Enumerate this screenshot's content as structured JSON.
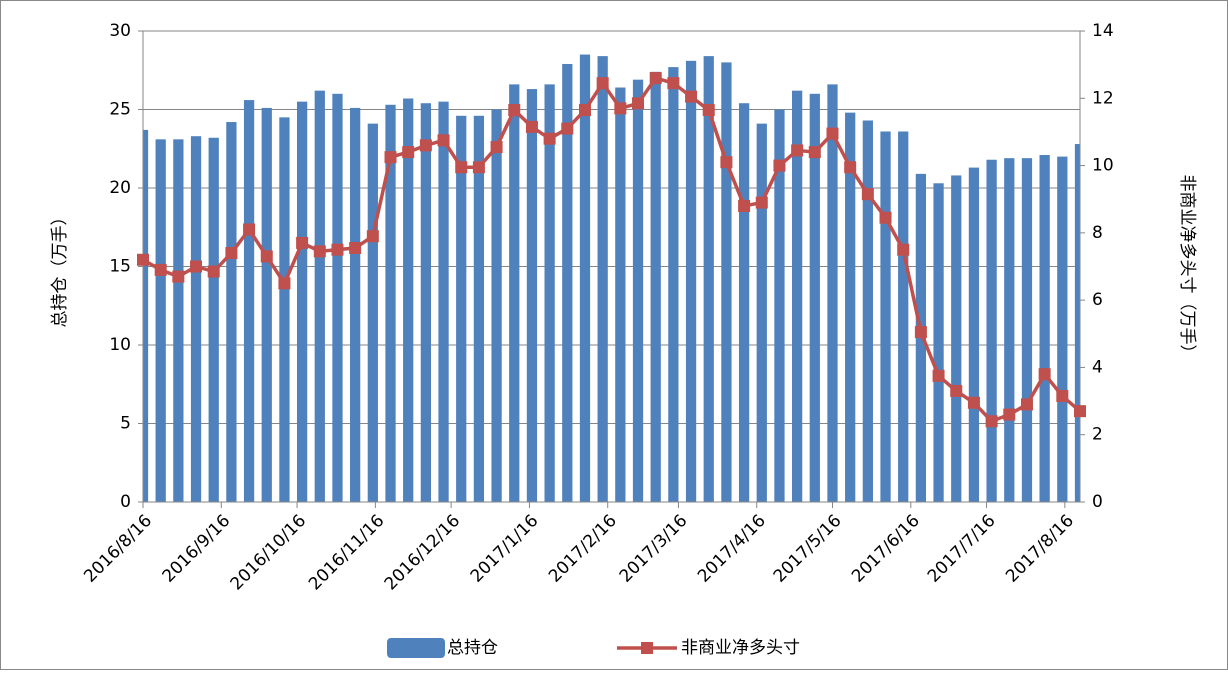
{
  "chart_data": {
    "type": "bar-line",
    "x": [
      "2016/8/16",
      "2016/8/23",
      "2016/8/30",
      "2016/9/6",
      "2016/9/13",
      "2016/9/20",
      "2016/9/27",
      "2016/10/4",
      "2016/10/11",
      "2016/10/18",
      "2016/10/25",
      "2016/11/1",
      "2016/11/8",
      "2016/11/15",
      "2016/11/22",
      "2016/11/29",
      "2016/12/6",
      "2016/12/13",
      "2016/12/20",
      "2016/12/27",
      "2017/1/3",
      "2017/1/10",
      "2017/1/17",
      "2017/1/24",
      "2017/1/31",
      "2017/2/7",
      "2017/2/14",
      "2017/2/21",
      "2017/2/28",
      "2017/3/7",
      "2017/3/14",
      "2017/3/21",
      "2017/3/28",
      "2017/4/4",
      "2017/4/11",
      "2017/4/18",
      "2017/4/25",
      "2017/5/2",
      "2017/5/9",
      "2017/5/16",
      "2017/5/23",
      "2017/5/30",
      "2017/6/6",
      "2017/6/13",
      "2017/6/20",
      "2017/6/27",
      "2017/7/4",
      "2017/7/11",
      "2017/7/18",
      "2017/7/25",
      "2017/8/1",
      "2017/8/8",
      "2017/8/15",
      "2017/8/22"
    ],
    "xticks": [
      "2016/8/16",
      "2016/9/16",
      "2016/10/16",
      "2016/11/16",
      "2016/12/16",
      "2017/1/16",
      "2017/2/16",
      "2017/3/16",
      "2017/4/16",
      "2017/5/16",
      "2017/6/16",
      "2017/7/16",
      "2017/8/16"
    ],
    "series": [
      {
        "name": "总持仓",
        "kind": "bar",
        "color": "#4f81bd",
        "values": [
          23.7,
          23.1,
          23.1,
          23.3,
          23.2,
          24.2,
          25.6,
          25.1,
          24.5,
          25.5,
          26.2,
          26.0,
          25.1,
          24.1,
          25.3,
          25.7,
          25.4,
          25.5,
          24.6,
          24.6,
          25.0,
          26.6,
          26.3,
          26.6,
          27.9,
          28.5,
          28.4,
          26.4,
          26.9,
          27.4,
          27.7,
          28.1,
          28.4,
          28.0,
          25.4,
          24.1,
          25.0,
          26.2,
          26.0,
          26.6,
          24.8,
          24.3,
          23.6,
          23.6,
          20.9,
          20.3,
          20.8,
          21.3,
          21.8,
          21.9,
          21.9,
          22.1,
          22.0,
          22.8
        ]
      },
      {
        "name": "非商业净多头寸",
        "kind": "line",
        "axis": "y2",
        "color": "#c0504d",
        "values": [
          7.2,
          6.9,
          6.7,
          7.0,
          6.85,
          7.4,
          8.1,
          7.3,
          6.5,
          7.7,
          7.45,
          7.5,
          7.55,
          7.9,
          10.25,
          10.4,
          10.6,
          10.75,
          9.95,
          9.95,
          10.55,
          11.65,
          11.15,
          10.8,
          11.1,
          11.65,
          12.45,
          11.7,
          11.85,
          12.6,
          12.45,
          12.05,
          11.65,
          10.1,
          8.8,
          8.9,
          10.0,
          10.45,
          10.4,
          10.95,
          9.95,
          9.15,
          8.45,
          7.5,
          5.05,
          3.75,
          3.3,
          2.95,
          2.4,
          2.6,
          2.9,
          3.8,
          3.15,
          2.7
        ]
      }
    ],
    "ylabel": "总持仓（万手）",
    "y2label": "非商业净多头寸（万手）",
    "ylim": [
      0,
      30
    ],
    "yticks": [
      0,
      5,
      10,
      15,
      20,
      25,
      30
    ],
    "y2lim": [
      0,
      14
    ],
    "y2ticks": [
      0,
      2,
      4,
      6,
      8,
      10,
      12,
      14
    ],
    "grid": true
  }
}
